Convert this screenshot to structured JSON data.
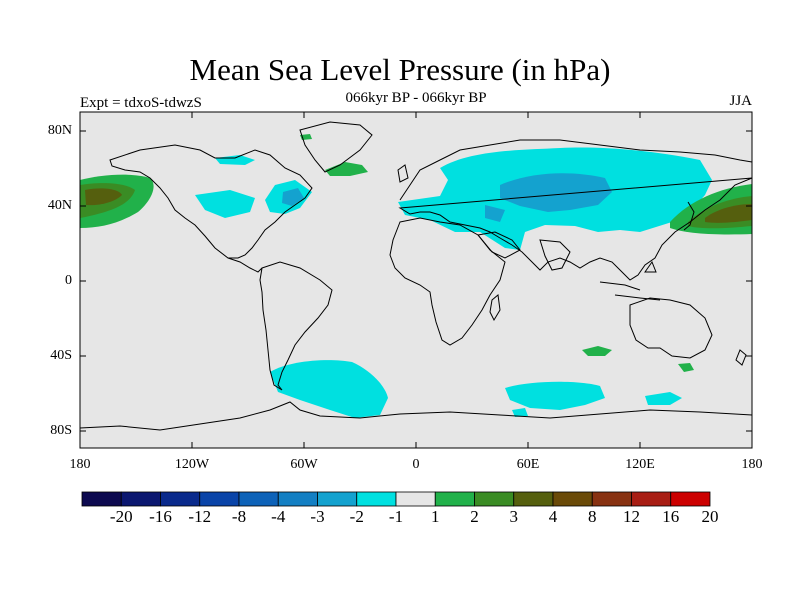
{
  "title": "Mean Sea Level Pressure (in hPa)",
  "subtitle": "066kyr BP - 066kyr BP",
  "experiment": "Expt = tdxoS-tdwzS",
  "season": "JJA",
  "lat_labels": [
    "80N",
    "40N",
    "0",
    "40S",
    "80S"
  ],
  "lon_labels": [
    "180",
    "120W",
    "60W",
    "0",
    "60E",
    "120E",
    "180"
  ],
  "colorbar": {
    "labels": [
      "-20",
      "-16",
      "-12",
      "-8",
      "-4",
      "-3",
      "-2",
      "-1",
      "1",
      "2",
      "3",
      "4",
      "8",
      "12",
      "16",
      "20"
    ],
    "colors": [
      "#0d0a50",
      "#0b1770",
      "#0a2a8c",
      "#0a44a8",
      "#0d62b8",
      "#137fc3",
      "#14a2cf",
      "#00e0e0",
      "#e6e6e6",
      "#21b14a",
      "#3a8c24",
      "#555f0e",
      "#6a4a08",
      "#883212",
      "#a81e14",
      "#cc0000"
    ]
  },
  "colors": {
    "background": "#e6e6e6",
    "coast": "#000000"
  }
}
